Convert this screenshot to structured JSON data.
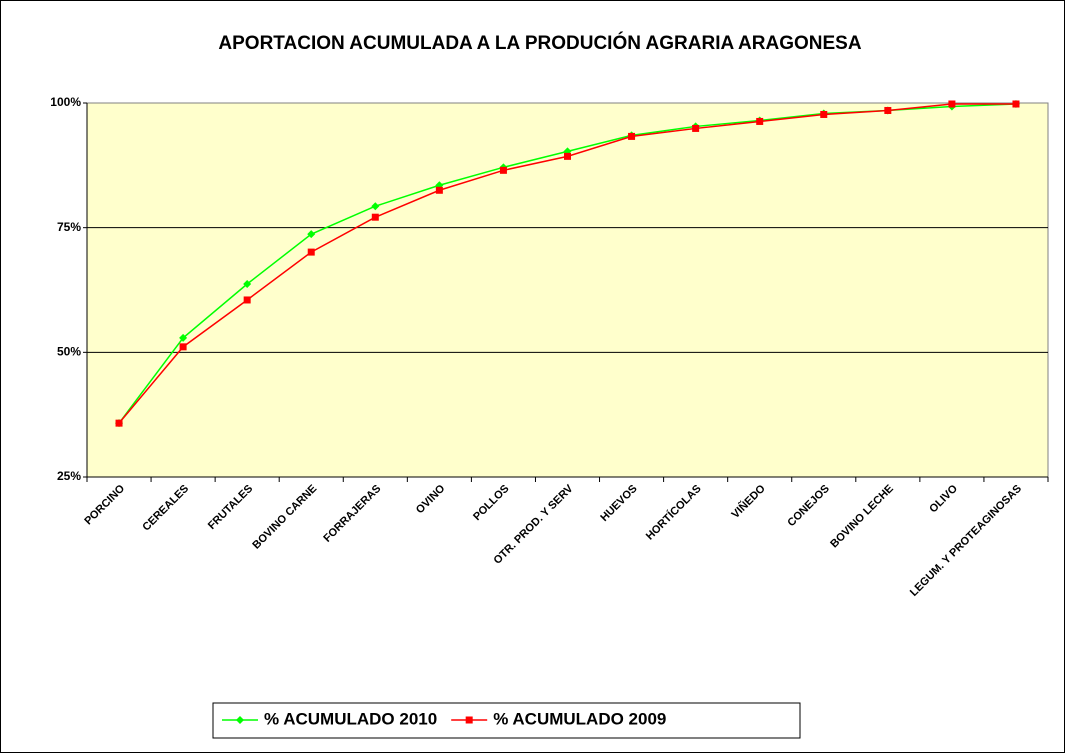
{
  "chart_data": {
    "type": "line",
    "title": "APORTACION ACUMULADA A LA PRODUCIÓN AGRARIA ARAGONESA",
    "categories": [
      "PORCINO",
      "CEREALES",
      "FRUTALES",
      "BOVINO CARNE",
      "FORRAJERAS",
      "OVINO",
      "POLLOS",
      "OTR. PROD. Y SERV",
      "HUEVOS",
      "HORTÍCOLAS",
      "VIÑEDO",
      "CONEJOS",
      "BOVINO LECHE",
      "OLIVO",
      "LEGUM. Y PROTEAGINOSAS"
    ],
    "series": [
      {
        "name": "% ACUMULADO 2010",
        "color": "#00ff00",
        "marker": "diamond",
        "values": [
          35.8,
          52.9,
          63.7,
          73.7,
          79.3,
          83.5,
          87.1,
          90.3,
          93.5,
          95.3,
          96.5,
          97.9,
          98.5,
          99.3,
          99.8
        ]
      },
      {
        "name": "% ACUMULADO 2009",
        "color": "#ff0000",
        "marker": "square",
        "values": [
          35.8,
          51.1,
          60.5,
          70.1,
          77.1,
          82.5,
          86.5,
          89.3,
          93.3,
          94.9,
          96.3,
          97.7,
          98.5,
          99.8,
          99.8
        ]
      }
    ],
    "ylim": [
      25,
      100
    ],
    "yticks": [
      {
        "value": 25,
        "label": "25%"
      },
      {
        "value": 50,
        "label": "50%"
      },
      {
        "value": 75,
        "label": "75%"
      },
      {
        "value": 100,
        "label": "100%"
      }
    ],
    "grid": true,
    "legend": "bottom"
  }
}
